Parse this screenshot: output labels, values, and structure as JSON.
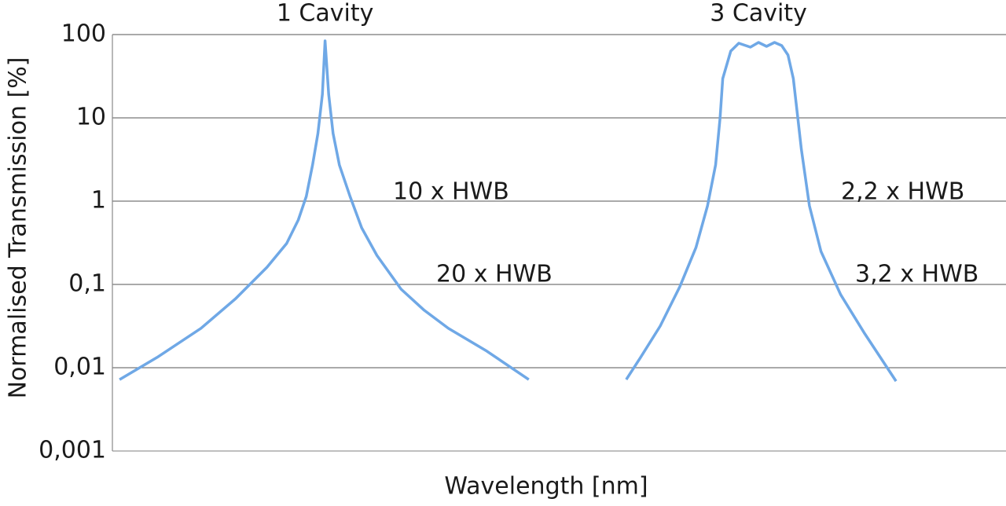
{
  "chart_data": {
    "type": "line",
    "ylabel": "Normalised Transmission [%]",
    "xlabel": "Wavelength [nm]",
    "log_y": true,
    "grid": true,
    "xlim": [
      0,
      100
    ],
    "ylim": [
      0.001,
      100
    ],
    "yticks": [
      {
        "value": 0.001,
        "label": "0,001"
      },
      {
        "value": 0.01,
        "label": "0,01"
      },
      {
        "value": 0.1,
        "label": "0,1"
      },
      1,
      10,
      100
    ],
    "series": [
      {
        "name": "1 Cavity",
        "color": "#6fa8e6",
        "x": [
          0.8,
          5.0,
          9.9,
          13.8,
          17.3,
          19.5,
          20.8,
          21.7,
          22.4,
          23.0,
          23.5,
          23.8,
          24.2,
          24.7,
          25.4,
          26.6,
          27.9,
          29.6,
          32.3,
          34.9,
          37.6,
          41.9,
          46.6
        ],
        "values": [
          0.0072,
          0.0133,
          0.0297,
          0.0676,
          0.161,
          0.31,
          0.594,
          1.14,
          2.72,
          6.5,
          19.2,
          84,
          19.2,
          6.5,
          2.72,
          1.14,
          0.478,
          0.223,
          0.0877,
          0.0489,
          0.0297,
          0.0158,
          0.0072
        ]
      },
      {
        "name": "3 Cavity",
        "color": "#6fa8e6",
        "x": [
          57.5,
          59.1,
          61.3,
          63.5,
          65.3,
          66.6,
          67.5,
          68.0,
          68.3,
          69.2,
          70.1,
          71.4,
          72.3,
          73.2,
          74.1,
          74.9,
          75.6,
          76.2,
          76.7,
          77.1,
          78.0,
          79.3,
          81.5,
          84.2,
          87.7
        ],
        "values": [
          0.0072,
          0.0133,
          0.0316,
          0.094,
          0.277,
          0.877,
          2.72,
          10,
          29.6,
          63.4,
          78.8,
          70.6,
          80.5,
          72.2,
          80.5,
          73.8,
          56.9,
          29.6,
          10,
          4.2,
          0.877,
          0.249,
          0.0753,
          0.0255,
          0.0069
        ]
      }
    ],
    "annotations": [
      "10 x HWB",
      "20 x HWB",
      "2,2 x HWB",
      "3,2 x HWB"
    ]
  }
}
